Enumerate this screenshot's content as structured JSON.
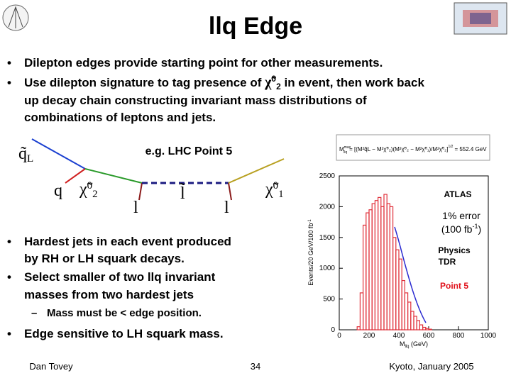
{
  "header": {
    "title": "llq Edge"
  },
  "bullets": {
    "b1": "Dilepton edges provide starting point for other measurements.",
    "b2": {
      "line0a": "Use dilepton signature to tag presence of ",
      "chi": "χ̃",
      "chi_sup": "0",
      "chi_sub": "2",
      "line0b": " in event, then work back",
      "line1": "up decay chain constructing invariant mass distributions of",
      "line2": "combinations of leptons and jets."
    },
    "b3": [
      "Hardest jets in each event produced",
      "by RH or LH squark decays."
    ],
    "b4": [
      "Select smaller of two llq invariant",
      "masses from two hardest jets"
    ],
    "sub1": "Mass must be < edge position.",
    "b5": "Edge sensitive to LH squark mass."
  },
  "diagram": {
    "label": "e.g. LHC Point 5",
    "nodes": [
      {
        "text": "q̃",
        "sub": "L"
      },
      {
        "text": "q"
      },
      {
        "text": "χ̃",
        "sup": "0",
        "sub": "2"
      },
      {
        "text": "l"
      },
      {
        "text": "l̃"
      },
      {
        "text": "l"
      },
      {
        "text": "χ̃",
        "sup": "0",
        "sub": "1"
      }
    ]
  },
  "formula": {
    "lhs": "M",
    "lhs_sub": "llq",
    "lhs_sup": "max",
    "body": "= [(M²q̃L − M²χ̃⁰₂)(M²χ̃⁰₂ − M²χ̃⁰₁)/M²χ̃⁰₂]",
    "power": "1/2",
    "result": "= 552.4 GeV"
  },
  "plot": {
    "ylabel": "Events/20 GeV/100 fb",
    "ylabel_sup": "-1",
    "xlabel": "M",
    "xlabel_sub": "llq",
    "xlabel_unit": " (GeV)",
    "xlim": [
      0,
      1000
    ],
    "ylim": [
      0,
      2500
    ],
    "xticks": [
      0,
      200,
      400,
      600,
      800,
      1000
    ],
    "yticks": [
      0,
      500,
      1000,
      1500,
      2000,
      2500
    ],
    "color": "#e0303a",
    "bins": [
      0,
      20,
      40,
      60,
      80,
      100,
      120,
      140,
      160,
      180,
      200,
      220,
      240,
      260,
      280,
      300,
      320,
      340,
      360,
      380,
      400,
      420,
      440,
      460,
      480,
      500,
      520,
      540,
      560,
      580,
      600,
      620,
      640,
      660,
      680,
      700,
      720,
      740,
      760,
      780,
      800,
      820,
      840,
      860,
      880,
      900,
      920,
      940,
      960,
      980,
      1000
    ],
    "counts": [
      0,
      0,
      0,
      0,
      0,
      0,
      50,
      600,
      1700,
      1900,
      1950,
      2050,
      2100,
      2150,
      2000,
      2200,
      2050,
      2000,
      1500,
      1300,
      1150,
      800,
      600,
      450,
      300,
      220,
      150,
      80,
      40,
      20,
      10,
      0,
      0,
      0,
      0,
      0,
      0,
      0,
      0,
      0,
      0,
      0,
      0,
      0,
      0,
      0,
      0,
      0,
      0,
      0
    ],
    "annotations": {
      "atlas": "ATLAS",
      "error": "1% error",
      "lumi": "(100 fb",
      "lumi_sup": "-1",
      "lumi_end": ")",
      "tdr1": "Physics",
      "tdr2": "TDR",
      "point": "Point 5"
    }
  },
  "footer": {
    "left": "Dan Tovey",
    "center": 34,
    "right": "Kyoto, January 2005"
  }
}
